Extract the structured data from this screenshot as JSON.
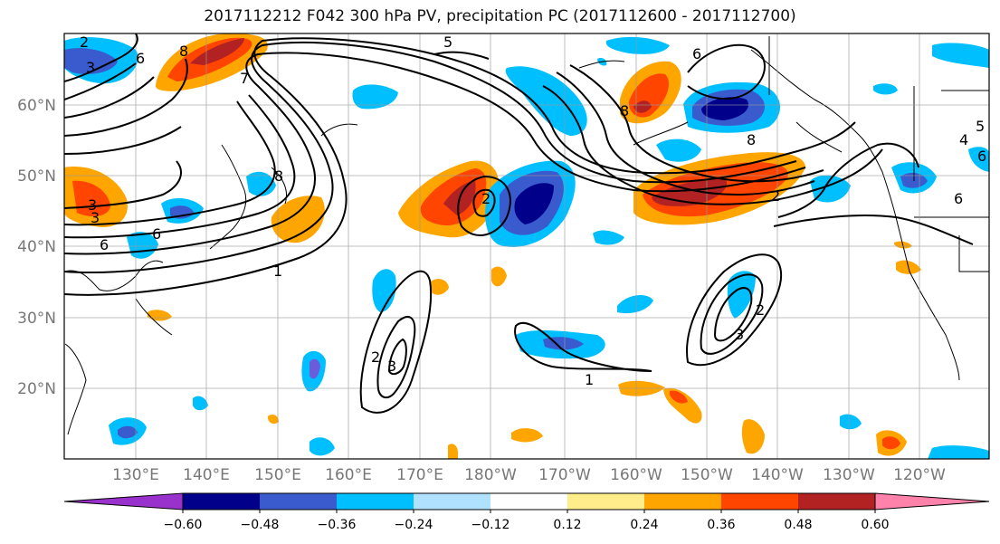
{
  "title": "2017112212 F042 300 hPa PV, precipitation PC (2017112600 - 2017112700)",
  "map": {
    "lat_labels": [
      "60°N",
      "50°N",
      "40°N",
      "30°N",
      "20°N"
    ],
    "lon_labels": [
      "130°E",
      "140°E",
      "150°E",
      "160°E",
      "170°E",
      "180°W",
      "170°W",
      "160°W",
      "150°W",
      "140°W",
      "130°W",
      "120°W"
    ]
  },
  "colorbar": {
    "colors": [
      "#9932cc",
      "#00008b",
      "#3a5bcd",
      "#00bfff",
      "#b0e2ff",
      "#ffffff",
      "#ffec8b",
      "#ffa500",
      "#ff4500",
      "#b22222",
      "#ff82ab"
    ],
    "ticks": [
      "−0.60",
      "−0.48",
      "−0.36",
      "−0.24",
      "−0.12",
      "0.12",
      "0.24",
      "0.36",
      "0.48",
      "0.60"
    ]
  },
  "contour_labels": [
    "2",
    "8",
    "5",
    "6",
    "7",
    "3",
    "6",
    "8",
    "3",
    "3",
    "6",
    "6",
    "1",
    "8",
    "2",
    "2",
    "1",
    "2",
    "3",
    "8",
    "5",
    "6",
    "2",
    "3",
    "4",
    "6"
  ]
}
